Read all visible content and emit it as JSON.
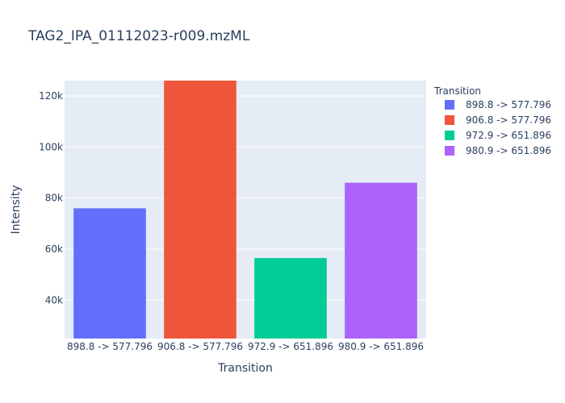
{
  "chart_data": {
    "type": "bar",
    "title": "TAG2_IPA_01112023-r009.mzML",
    "xlabel": "Transition",
    "ylabel": "Intensity",
    "categories": [
      "898.8 -> 577.796",
      "906.8 -> 577.796",
      "972.9 -> 651.896",
      "980.9 -> 651.896"
    ],
    "values": [
      76000,
      126000,
      56500,
      86000
    ],
    "colors": [
      "#636efa",
      "#EF553B",
      "#00cc96",
      "#ab63fa"
    ],
    "ylim": [
      25000,
      126000
    ],
    "yticks": [
      40000,
      60000,
      80000,
      100000,
      120000
    ],
    "ytick_labels": [
      "40k",
      "60k",
      "80k",
      "100k",
      "120k"
    ],
    "grid": true,
    "legend": {
      "title": "Transition",
      "placement": "right",
      "entries": [
        "898.8 -> 577.796",
        "906.8 -> 577.796",
        "972.9 -> 651.896",
        "980.9 -> 651.896"
      ]
    },
    "plot_background": "#e5ecf6",
    "text_color": "#2a3f5f"
  }
}
